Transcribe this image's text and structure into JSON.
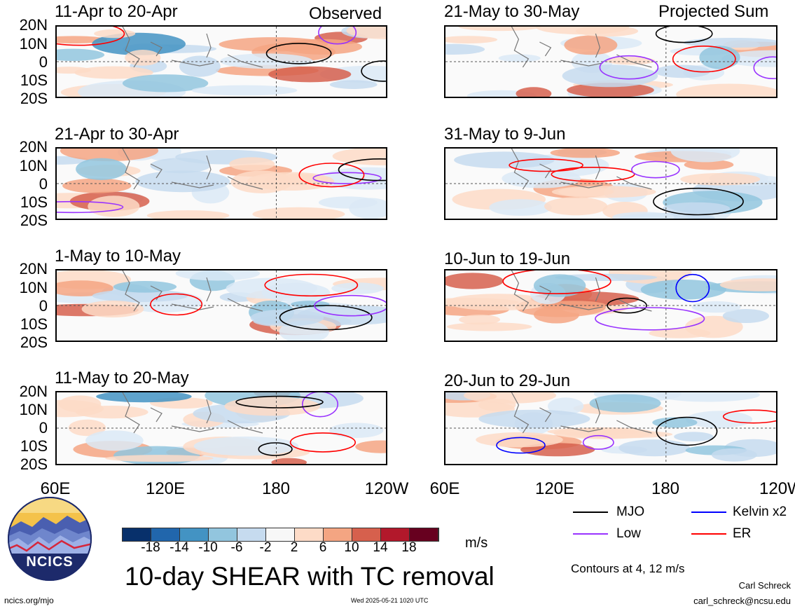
{
  "headers": {
    "left": "Observed",
    "right": "Projected Sum"
  },
  "panels_left": [
    {
      "title": "11-Apr to 20-Apr"
    },
    {
      "title": "21-Apr to 30-Apr"
    },
    {
      "title": "1-May to 10-May"
    },
    {
      "title": "11-May to 20-May"
    }
  ],
  "panels_right": [
    {
      "title": "21-May to 30-May"
    },
    {
      "title": "31-May to 9-Jun"
    },
    {
      "title": "10-Jun to 19-Jun"
    },
    {
      "title": "20-Jun to 29-Jun"
    }
  ],
  "lat_labels": [
    "20N",
    "10N",
    "0",
    "10S",
    "20S"
  ],
  "lon_labels": [
    "60E",
    "120E",
    "180",
    "120W"
  ],
  "colorbar": {
    "ticks": [
      "-18",
      "-14",
      "-10",
      "-6",
      "-2",
      "2",
      "6",
      "10",
      "14",
      "18"
    ],
    "colors": [
      "#08306b",
      "#2166ac",
      "#4393c3",
      "#92c5de",
      "#c6dbef",
      "#f7f7f7",
      "#fddbc7",
      "#f4a582",
      "#d6604d",
      "#b2182b",
      "#67001f"
    ],
    "unit": "m/s"
  },
  "legend": {
    "items": [
      {
        "label": "MJO",
        "color": "#000000"
      },
      {
        "label": "Kelvin x2",
        "color": "#0000ff"
      },
      {
        "label": "Low",
        "color": "#9933ff"
      },
      {
        "label": "ER",
        "color": "#ff0000"
      }
    ],
    "contours_note": "Contours at 4, 12 m/s"
  },
  "main_title": "10-day SHEAR with TC removal",
  "logo_text": "NCICS",
  "footer": {
    "url": "ncics.org/mjo",
    "timestamp": "Wed 2025-05-21 1020 UTC",
    "author": "Carl Schreck",
    "email": "carl_schreck@ncsu.edu"
  }
}
